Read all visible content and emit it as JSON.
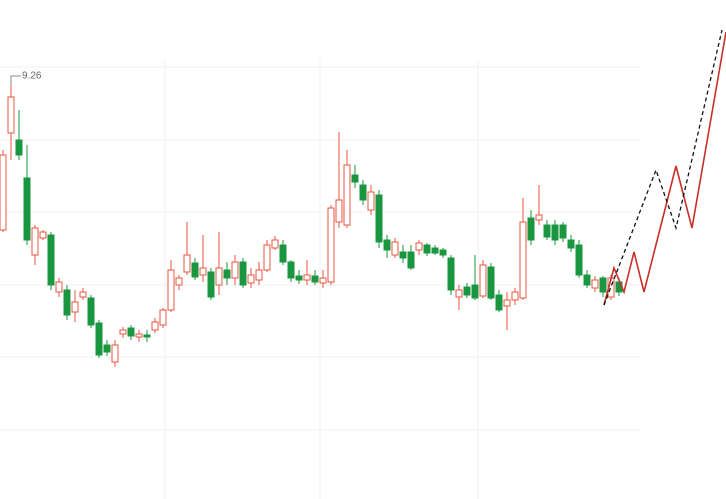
{
  "chart_data": {
    "type": "candlestick",
    "x": [
      0,
      1,
      2,
      3,
      4,
      5,
      6,
      7,
      8,
      9,
      10,
      11,
      12,
      13,
      14,
      15,
      16,
      17,
      18,
      19,
      20,
      21,
      22,
      23,
      24,
      25,
      26,
      27,
      28,
      29,
      30,
      31,
      32,
      33,
      34,
      35,
      36,
      37,
      38,
      39,
      40,
      41,
      42,
      43,
      44,
      45,
      46,
      47,
      48,
      49,
      50,
      51,
      52,
      53,
      54,
      55,
      56,
      57,
      58,
      59,
      60,
      61,
      62,
      63,
      64,
      65,
      66,
      67,
      68,
      69,
      70,
      71,
      72,
      73,
      74,
      75,
      76,
      77
    ],
    "open": [
      7.81,
      8.78,
      8.71,
      8.33,
      7.56,
      7.73,
      7.76,
      7.19,
      7.21,
      6.99,
      7.14,
      7.13,
      6.88,
      6.66,
      6.49,
      6.77,
      6.83,
      6.74,
      6.76,
      6.81,
      6.86,
      7.01,
      7.26,
      7.39,
      7.48,
      7.36,
      7.39,
      7.26,
      7.41,
      7.33,
      7.49,
      7.28,
      7.31,
      7.41,
      7.63,
      7.66,
      7.49,
      7.35,
      7.31,
      7.35,
      7.28,
      7.29,
      7.89,
      7.86,
      8.36,
      8.26,
      8.01,
      8.16,
      7.71,
      7.56,
      7.59,
      7.59,
      7.61,
      7.66,
      7.63,
      7.61,
      7.53,
      7.14,
      7.24,
      7.26,
      7.15,
      7.44,
      7.16,
      7.05,
      7.11,
      7.13,
      7.93,
      7.91,
      7.86,
      7.86,
      7.86,
      7.71,
      7.66,
      7.36,
      7.23,
      7.33,
      7.14,
      7.29
    ],
    "high": [
      8.61,
      9.26,
      9.01,
      8.66,
      7.86,
      7.81,
      7.79,
      7.33,
      7.26,
      7.21,
      7.23,
      7.16,
      6.91,
      6.71,
      6.71,
      6.84,
      6.86,
      6.81,
      6.81,
      6.93,
      7.03,
      7.51,
      7.36,
      7.89,
      7.53,
      7.76,
      7.43,
      7.79,
      7.49,
      7.56,
      7.53,
      7.43,
      7.49,
      7.71,
      7.75,
      7.71,
      7.51,
      7.41,
      7.51,
      7.41,
      7.41,
      8.06,
      8.79,
      8.61,
      8.46,
      8.31,
      8.26,
      8.21,
      7.76,
      7.73,
      7.66,
      7.66,
      7.71,
      7.68,
      7.66,
      7.63,
      7.56,
      7.26,
      7.28,
      7.56,
      7.51,
      7.48,
      7.21,
      7.19,
      7.23,
      8.13,
      8.01,
      8.26,
      7.91,
      7.91,
      7.89,
      7.76,
      7.71,
      7.41,
      7.35,
      7.35,
      7.36,
      7.33
    ],
    "low": [
      7.79,
      8.51,
      8.51,
      7.66,
      7.46,
      7.71,
      7.21,
      7.14,
      6.91,
      6.89,
      7.11,
      6.83,
      6.53,
      6.55,
      6.44,
      6.73,
      6.71,
      6.69,
      6.69,
      6.78,
      6.83,
      6.99,
      7.21,
      7.36,
      7.31,
      7.29,
      7.11,
      7.16,
      7.26,
      7.26,
      7.23,
      7.23,
      7.26,
      7.39,
      7.61,
      7.46,
      7.29,
      7.27,
      7.26,
      7.26,
      7.23,
      7.26,
      7.83,
      7.83,
      8.23,
      8.06,
      7.96,
      7.63,
      7.53,
      7.53,
      7.48,
      7.41,
      7.56,
      7.55,
      7.56,
      7.53,
      7.16,
      7.01,
      7.13,
      7.11,
      7.13,
      7.11,
      6.99,
      6.81,
      7.06,
      7.11,
      7.66,
      7.86,
      7.71,
      7.66,
      7.69,
      7.59,
      7.33,
      7.23,
      7.19,
      7.14,
      7.11,
      7.15
    ],
    "close": [
      8.56,
      9.14,
      8.56,
      7.71,
      7.83,
      7.79,
      7.26,
      7.29,
      6.96,
      7.09,
      7.19,
      6.86,
      6.56,
      6.59,
      6.66,
      6.81,
      6.75,
      6.77,
      6.74,
      6.89,
      7.01,
      7.41,
      7.33,
      7.56,
      7.34,
      7.43,
      7.14,
      7.43,
      7.33,
      7.49,
      7.26,
      7.36,
      7.41,
      7.66,
      7.71,
      7.49,
      7.33,
      7.31,
      7.36,
      7.29,
      7.33,
      8.03,
      8.11,
      8.46,
      8.29,
      8.11,
      8.19,
      7.69,
      7.61,
      7.69,
      7.53,
      7.43,
      7.68,
      7.58,
      7.58,
      7.56,
      7.21,
      7.21,
      7.16,
      7.13,
      7.46,
      7.13,
      7.01,
      7.11,
      7.19,
      7.89,
      7.71,
      7.96,
      7.74,
      7.71,
      7.73,
      7.63,
      7.36,
      7.26,
      7.31,
      7.19,
      7.33,
      7.19
    ],
    "up_color": "#e8553f",
    "down_color": "#1a9641",
    "overlays": [
      {
        "color": "#c8302a",
        "dashed": false,
        "x": [
          75.125,
          76.375,
          77.625,
          78.875,
          80.125,
          84.125,
          86.125,
          90.375
        ],
        "values": [
          7.06,
          7.43,
          7.19,
          7.59,
          7.19,
          8.45,
          7.83,
          9.79
        ]
      },
      {
        "color": "#111111",
        "dashed": true,
        "x": [
          75.125,
          81.625,
          84.125,
          89.875
        ],
        "values": [
          7.06,
          8.41,
          7.83,
          9.81
        ]
      }
    ],
    "xlim": [
      -0.375,
      90.375
    ],
    "ylim": [
      5.12,
      10.11
    ]
  }
}
